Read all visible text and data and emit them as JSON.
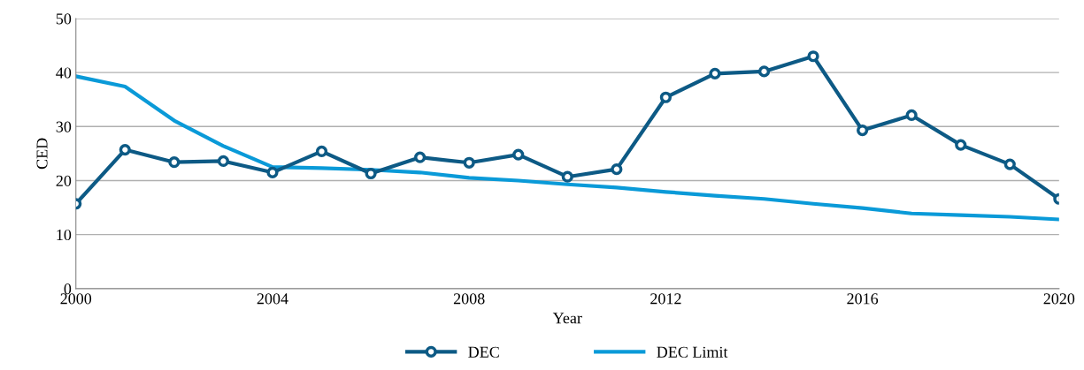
{
  "chart_data": {
    "type": "line",
    "xlabel": "Year",
    "ylabel": "CED",
    "x": [
      2000,
      2001,
      2002,
      2003,
      2004,
      2005,
      2006,
      2007,
      2008,
      2009,
      2010,
      2011,
      2012,
      2013,
      2014,
      2015,
      2016,
      2017,
      2018,
      2019,
      2020
    ],
    "series": [
      {
        "name": "DEC",
        "color": "#0d5a85",
        "marker": "circle",
        "values": [
          15.7,
          25.7,
          23.4,
          23.6,
          21.5,
          25.4,
          21.3,
          24.3,
          23.3,
          24.8,
          20.7,
          22.1,
          35.4,
          39.8,
          40.2,
          43.0,
          29.3,
          32.1,
          26.6,
          23.0,
          16.6
        ]
      },
      {
        "name": "DEC Limit",
        "color": "#0a9ad8",
        "marker": "none",
        "values": [
          39.3,
          37.4,
          31.1,
          26.4,
          22.5,
          22.3,
          22.0,
          21.5,
          20.5,
          20.0,
          19.3,
          18.7,
          17.9,
          17.2,
          16.6,
          15.7,
          14.9,
          13.9,
          13.6,
          13.3,
          12.8
        ]
      }
    ],
    "xlim": [
      2000,
      2020
    ],
    "xticks": [
      2000,
      2004,
      2008,
      2012,
      2016,
      2020
    ],
    "ylim": [
      0,
      50
    ],
    "yticks": [
      0,
      10,
      20,
      30,
      40,
      50
    ],
    "grid": "y",
    "legend": "bottom",
    "line_style": "solid"
  }
}
